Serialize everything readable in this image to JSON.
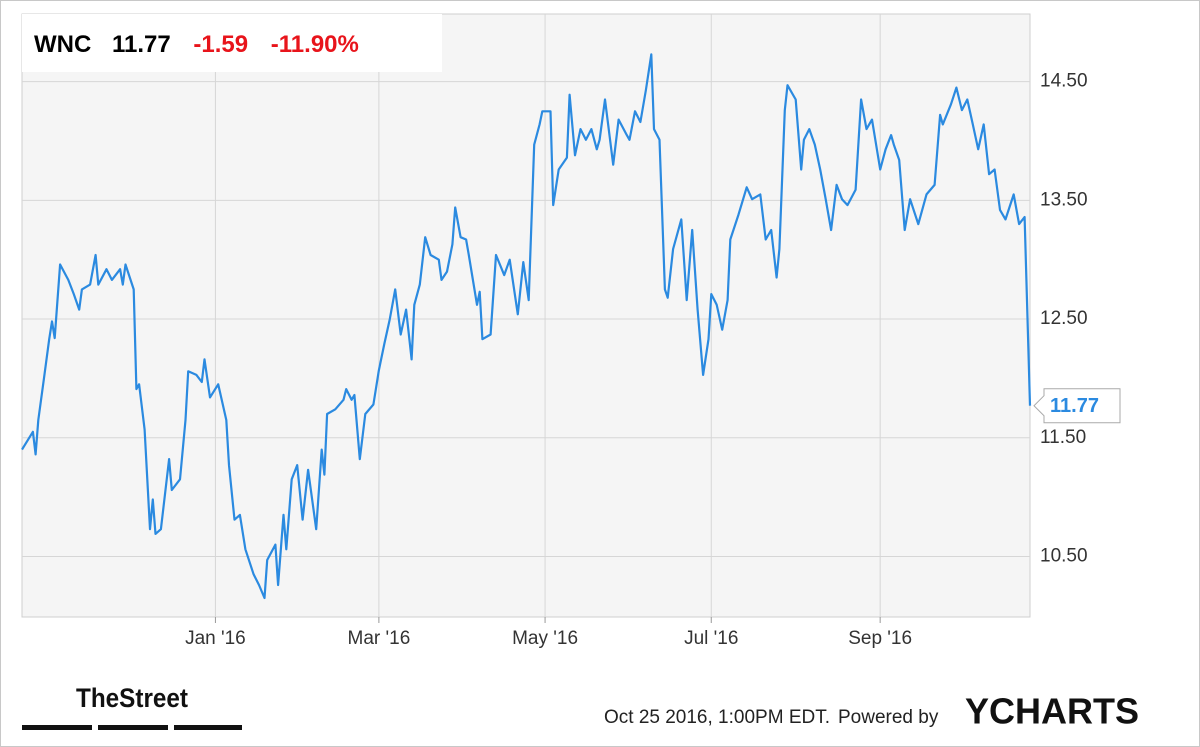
{
  "chart_data": {
    "type": "line",
    "header": {
      "symbol": "WNC",
      "price": "11.77",
      "change": "-1.59",
      "change_pct": "-11.90%"
    },
    "x": [
      -71,
      -67,
      -66,
      -65,
      -63,
      -61,
      -60,
      -59,
      -57,
      -54,
      -52,
      -50,
      -49,
      -46,
      -44,
      -43,
      -40,
      -38,
      -35,
      -34,
      -33,
      -30,
      -29,
      -28,
      -26,
      -24,
      -23,
      -22,
      -20,
      -17,
      -16,
      -13,
      -11,
      -10,
      -7,
      -5,
      -4,
      -2,
      1,
      4,
      5,
      7,
      9,
      11,
      14,
      16,
      18,
      19,
      22,
      23,
      25,
      26,
      28,
      30,
      32,
      34,
      37,
      39,
      40,
      41,
      44,
      47,
      48,
      50,
      51,
      53,
      55,
      58,
      60,
      62,
      64,
      66,
      68,
      70,
      72,
      73,
      75,
      77,
      79,
      82,
      83,
      85,
      87,
      88,
      90,
      92,
      93,
      96,
      97,
      98,
      101,
      103,
      106,
      108,
      111,
      113,
      115,
      117,
      119,
      120,
      123,
      124,
      126,
      129,
      130,
      132,
      134,
      136,
      138,
      140,
      141,
      143,
      146,
      148,
      151,
      152,
      154,
      156,
      158,
      160,
      161,
      163,
      165,
      166,
      168,
      171,
      173,
      175,
      177,
      179,
      181,
      182,
      184,
      186,
      188,
      189,
      192,
      195,
      197,
      200,
      202,
      204,
      206,
      207,
      209,
      210,
      213,
      215,
      216,
      218,
      220,
      222,
      224,
      226,
      228,
      230,
      232,
      235,
      237,
      239,
      241,
      244,
      246,
      248,
      249,
      251,
      253,
      255,
      258,
      261,
      264,
      266,
      267,
      270,
      272,
      274,
      276,
      278,
      280,
      282,
      284,
      286,
      288,
      290,
      293,
      295,
      297,
      299
    ],
    "series": [
      {
        "color": "#2b8ae0",
        "values": [
          11.4,
          11.55,
          11.36,
          11.65,
          11.99,
          12.33,
          12.48,
          12.34,
          12.96,
          12.83,
          12.71,
          12.58,
          12.75,
          12.79,
          13.04,
          12.79,
          12.92,
          12.83,
          12.92,
          12.79,
          12.96,
          12.75,
          11.91,
          11.95,
          11.57,
          10.73,
          10.98,
          10.69,
          10.73,
          11.32,
          11.06,
          11.15,
          11.65,
          12.06,
          12.03,
          11.97,
          12.16,
          11.84,
          11.95,
          11.65,
          11.27,
          10.81,
          10.85,
          10.56,
          10.35,
          10.26,
          10.15,
          10.47,
          10.6,
          10.26,
          10.85,
          10.56,
          11.15,
          11.27,
          10.81,
          11.23,
          10.73,
          11.4,
          11.19,
          11.7,
          11.74,
          11.82,
          11.91,
          11.82,
          11.86,
          11.32,
          11.7,
          11.78,
          12.07,
          12.29,
          12.5,
          12.75,
          12.37,
          12.58,
          12.16,
          12.62,
          12.79,
          13.19,
          13.04,
          13.0,
          12.83,
          12.9,
          13.13,
          13.44,
          13.19,
          13.17,
          13.04,
          12.62,
          12.73,
          12.33,
          12.37,
          13.04,
          12.87,
          13.0,
          12.54,
          12.98,
          12.66,
          13.97,
          14.14,
          14.25,
          14.25,
          13.46,
          13.76,
          13.86,
          14.39,
          13.88,
          14.1,
          14.01,
          14.1,
          13.93,
          14.01,
          14.35,
          13.8,
          14.18,
          14.05,
          14.01,
          14.25,
          14.16,
          14.43,
          14.73,
          14.1,
          14.01,
          12.75,
          12.68,
          13.09,
          13.34,
          12.66,
          13.25,
          12.58,
          12.03,
          12.33,
          12.71,
          12.62,
          12.41,
          12.66,
          13.17,
          13.38,
          13.61,
          13.51,
          13.55,
          13.17,
          13.25,
          12.85,
          13.09,
          14.26,
          14.47,
          14.35,
          13.76,
          14.01,
          14.1,
          13.97,
          13.76,
          13.51,
          13.25,
          13.63,
          13.51,
          13.46,
          13.59,
          14.35,
          14.1,
          14.18,
          13.76,
          13.93,
          14.05,
          13.97,
          13.84,
          13.25,
          13.51,
          13.3,
          13.55,
          13.63,
          14.22,
          14.14,
          14.31,
          14.45,
          14.26,
          14.35,
          14.14,
          13.93,
          14.14,
          13.72,
          13.76,
          13.42,
          13.34,
          13.55,
          13.3,
          13.36,
          11.77
        ]
      }
    ],
    "xlim": [
      -71,
      299
    ],
    "xticks": [
      {
        "value": 0,
        "label": "Jan '16"
      },
      {
        "value": 60,
        "label": "Mar '16"
      },
      {
        "value": 121,
        "label": "May '16"
      },
      {
        "value": 182,
        "label": "Jul '16"
      },
      {
        "value": 244,
        "label": "Sep '16"
      }
    ],
    "ylim": [
      9.99,
      15.07
    ],
    "yticks": [
      {
        "value": 10.5,
        "label": "10.50"
      },
      {
        "value": 11.5,
        "label": "11.50"
      },
      {
        "value": 12.5,
        "label": "12.50"
      },
      {
        "value": 13.5,
        "label": "13.50"
      },
      {
        "value": 14.5,
        "label": "14.50"
      }
    ],
    "grid": true
  },
  "footer": {
    "brand": "TheStreet",
    "timestamp": "Oct 25 2016, 1:00PM EDT.",
    "powered": "Powered by",
    "provider": "YCHARTS"
  }
}
